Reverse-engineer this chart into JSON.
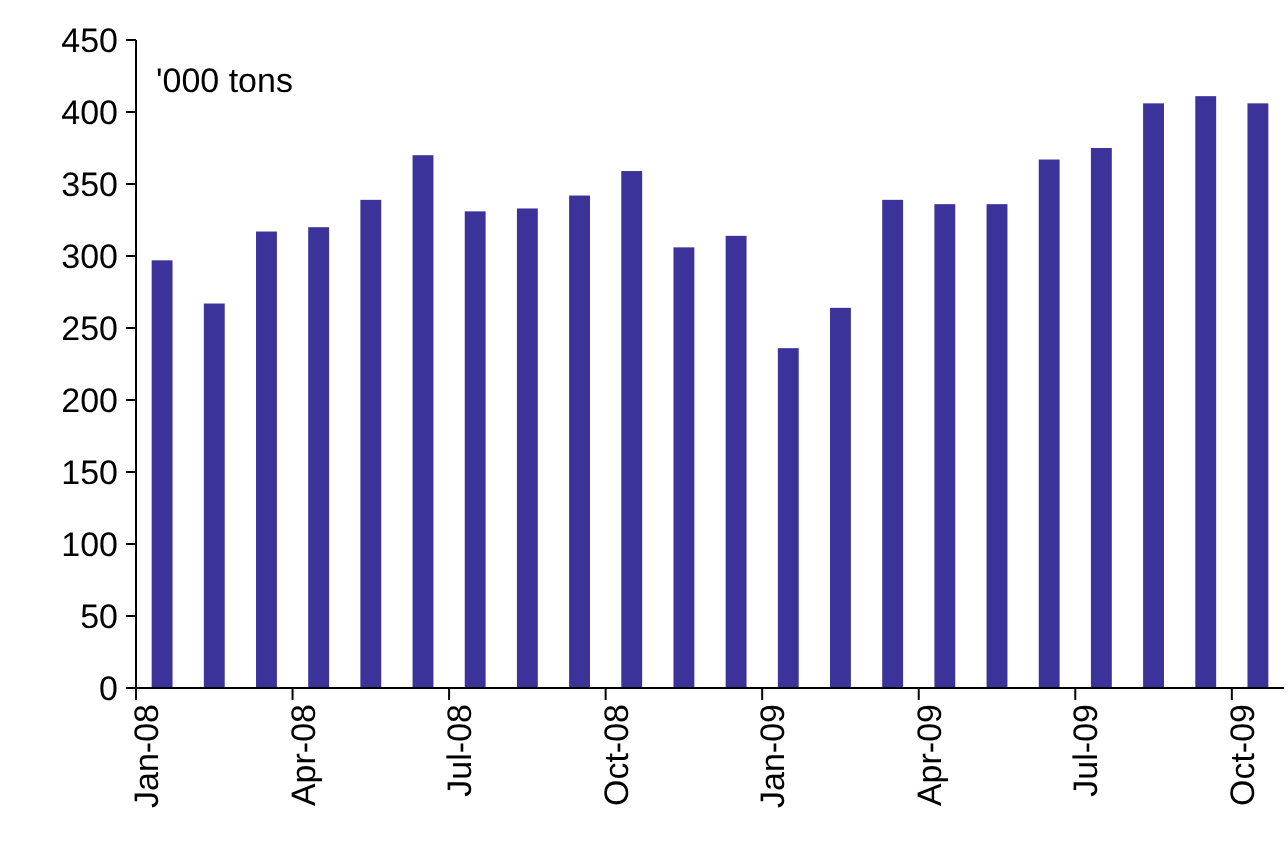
{
  "chart_data": {
    "type": "bar",
    "ylabel": "'000 tons",
    "categories": [
      "Jan-08",
      null,
      null,
      "Apr-08",
      null,
      null,
      "Jul-08",
      null,
      null,
      "Oct-08",
      null,
      null,
      "Jan-09",
      null,
      null,
      "Apr-09",
      null,
      null,
      "Jul-09",
      null,
      null,
      "Oct-09"
    ],
    "values": [
      297,
      267,
      317,
      320,
      339,
      370,
      331,
      333,
      342,
      359,
      306,
      314,
      236,
      264,
      339,
      336,
      336,
      367,
      375,
      406,
      411,
      406
    ],
    "color": "#3b3399",
    "ylim": [
      0,
      450
    ],
    "yticks": [
      0,
      50,
      100,
      150,
      200,
      250,
      300,
      350,
      400,
      450
    ],
    "grid": false
  }
}
